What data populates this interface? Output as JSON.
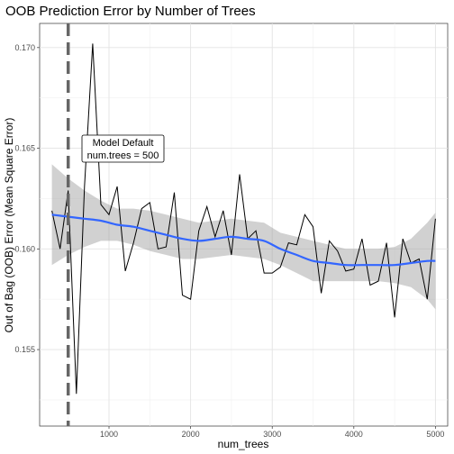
{
  "chart_data": {
    "type": "line",
    "title": "OOB Prediction Error by Number of Trees",
    "xlabel": "num_trees",
    "ylabel": "Out of Bag (OOB) Error (Mean Square Error)",
    "xlim": [
      150,
      5150
    ],
    "ylim": [
      0.1512,
      0.1712
    ],
    "x_ticks": [
      1000,
      2000,
      3000,
      4000,
      5000
    ],
    "x_tick_labels": [
      "1000",
      "2000",
      "3000",
      "4000",
      "5000"
    ],
    "y_ticks": [
      0.155,
      0.16,
      0.165,
      0.17
    ],
    "y_tick_labels": [
      "0.155",
      "0.160",
      "0.165",
      "0.170"
    ],
    "grid": true,
    "vline": {
      "x": 500,
      "style": "dashed",
      "color": "#666666"
    },
    "annotation": {
      "x": 850,
      "y": 0.1652,
      "lines": [
        "Model Default",
        "num.trees = 500"
      ]
    },
    "series": [
      {
        "kind": "observed",
        "color": "#000000",
        "x": [
          300,
          400,
          500,
          600,
          700,
          800,
          900,
          1000,
          1100,
          1200,
          1300,
          1400,
          1500,
          1600,
          1700,
          1800,
          1900,
          2000,
          2100,
          2200,
          2300,
          2400,
          2500,
          2600,
          2700,
          2800,
          2900,
          3000,
          3100,
          3200,
          3300,
          3400,
          3500,
          3600,
          3700,
          3800,
          3900,
          4000,
          4100,
          4200,
          4300,
          4400,
          4500,
          4600,
          4700,
          4800,
          4900,
          5000
        ],
        "y": [
          0.1619,
          0.16,
          0.1629,
          0.1528,
          0.1631,
          0.1702,
          0.1622,
          0.1617,
          0.1631,
          0.1589,
          0.1603,
          0.162,
          0.1623,
          0.16,
          0.1601,
          0.1628,
          0.1577,
          0.1575,
          0.1609,
          0.1621,
          0.1606,
          0.1619,
          0.1597,
          0.1637,
          0.1605,
          0.1609,
          0.1588,
          0.1588,
          0.1591,
          0.1603,
          0.1602,
          0.1617,
          0.1611,
          0.1578,
          0.1604,
          0.1599,
          0.1589,
          0.159,
          0.1605,
          0.1582,
          0.1584,
          0.1603,
          0.1566,
          0.1605,
          0.1593,
          0.1595,
          0.1575,
          0.1615
        ]
      },
      {
        "kind": "smooth",
        "color": "#3366FF",
        "band_color": "#999999",
        "x": [
          300,
          500,
          700,
          900,
          1100,
          1300,
          1500,
          1700,
          1900,
          2100,
          2300,
          2500,
          2700,
          2900,
          3100,
          3300,
          3500,
          3700,
          3900,
          4100,
          4300,
          4500,
          4700,
          4900,
          5000
        ],
        "y": [
          0.1617,
          0.1616,
          0.1615,
          0.1614,
          0.1612,
          0.1611,
          0.1609,
          0.1607,
          0.1605,
          0.1604,
          0.1605,
          0.1606,
          0.1605,
          0.1604,
          0.16,
          0.1597,
          0.1594,
          0.1593,
          0.1592,
          0.1592,
          0.1592,
          0.1592,
          0.1593,
          0.1594,
          0.1594
        ],
        "lower": [
          0.1592,
          0.1597,
          0.1601,
          0.1604,
          0.1604,
          0.1602,
          0.1599,
          0.1597,
          0.1595,
          0.1595,
          0.1596,
          0.1597,
          0.1596,
          0.1595,
          0.1592,
          0.1588,
          0.1584,
          0.1584,
          0.1584,
          0.1584,
          0.1584,
          0.1583,
          0.1581,
          0.1575,
          0.157
        ],
        "upper": [
          0.1642,
          0.1635,
          0.1629,
          0.1624,
          0.162,
          0.162,
          0.1619,
          0.1617,
          0.1615,
          0.1613,
          0.1614,
          0.1615,
          0.1614,
          0.1613,
          0.1608,
          0.1606,
          0.1604,
          0.1602,
          0.16,
          0.16,
          0.16,
          0.1601,
          0.1605,
          0.1613,
          0.1618
        ]
      }
    ]
  }
}
